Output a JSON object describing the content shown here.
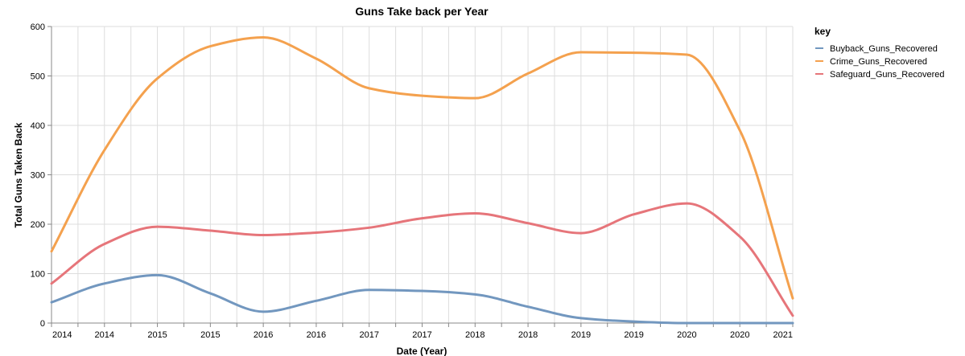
{
  "chart_data": {
    "type": "line",
    "title": "Guns Take back per Year",
    "xlabel": "Date (Year)",
    "ylabel": "Total Guns Taken Back",
    "ylim": [
      0,
      600
    ],
    "yticks": [
      0,
      100,
      200,
      300,
      400,
      500,
      600
    ],
    "x_tick_labels": [
      "2014",
      "2014",
      "2015",
      "2015",
      "2016",
      "2016",
      "2017",
      "2017",
      "2018",
      "2018",
      "2019",
      "2019",
      "2020",
      "2020",
      "2021"
    ],
    "x": [
      0,
      1,
      2,
      3,
      4,
      5,
      6,
      7,
      8,
      9,
      10,
      11,
      12,
      13,
      14
    ],
    "grid": true,
    "legend": {
      "title": "key",
      "position": "right"
    },
    "series": [
      {
        "name": "Buyback_Guns_Recovered",
        "color": "#7297bf",
        "values": [
          42,
          80,
          97,
          60,
          23,
          45,
          67,
          65,
          58,
          33,
          10,
          3,
          0,
          0,
          0
        ]
      },
      {
        "name": "Crime_Guns_Recovered",
        "color": "#f4a14e",
        "values": [
          145,
          350,
          495,
          560,
          578,
          535,
          475,
          460,
          455,
          505,
          548,
          547,
          543,
          390,
          50
        ]
      },
      {
        "name": "Safeguard_Guns_Recovered",
        "color": "#e6757a",
        "values": [
          80,
          160,
          195,
          187,
          178,
          183,
          193,
          212,
          222,
          202,
          182,
          220,
          242,
          175,
          15
        ]
      }
    ]
  }
}
